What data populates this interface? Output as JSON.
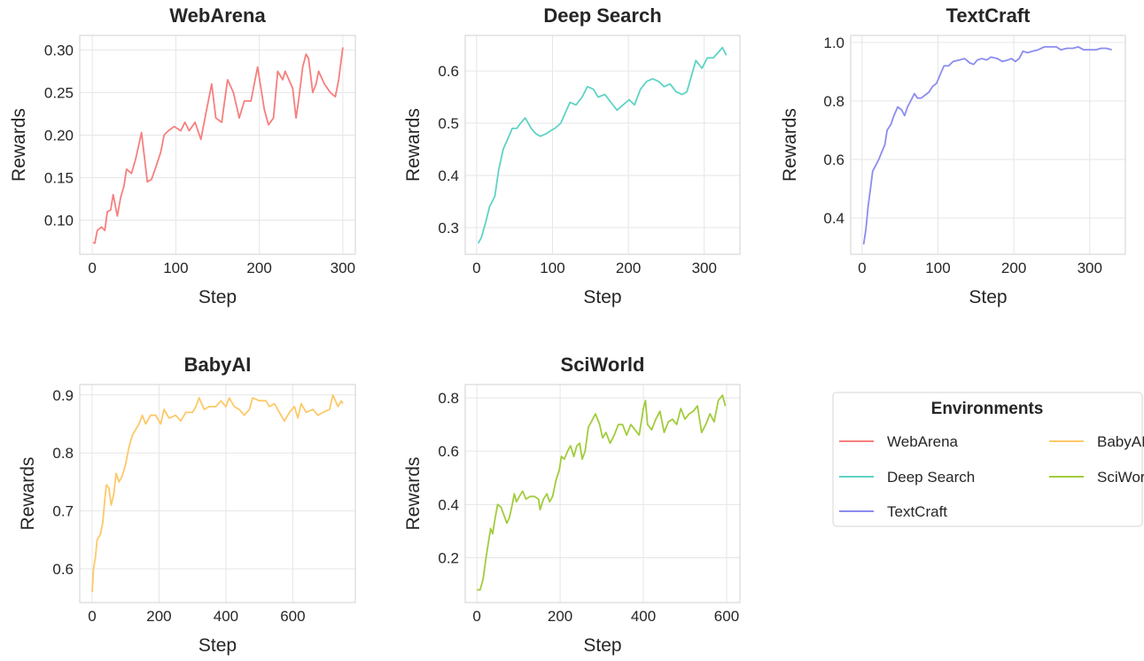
{
  "legend": {
    "title": "Environments",
    "placement": "bottom-right",
    "entries": [
      "WebArena",
      "BabyAI",
      "Deep Search",
      "SciWorld",
      "TextCraft"
    ]
  },
  "chart_data": [
    {
      "type": "line",
      "title": "WebArena",
      "xlabel": "Step",
      "ylabel": "Rewards",
      "color": "#f67f7f",
      "grid": true,
      "xlim": [
        -15,
        315
      ],
      "ylim": [
        0.06,
        0.317
      ],
      "xticks": [
        0,
        100,
        200,
        300
      ],
      "xtick_labels": [
        "0",
        "100",
        "200",
        "300"
      ],
      "yticks": [
        0.1,
        0.15,
        0.2,
        0.25,
        0.3
      ],
      "ytick_labels": [
        "0.10",
        "0.15",
        "0.20",
        "0.25",
        "0.30"
      ],
      "x": [
        1,
        3,
        6,
        11,
        15,
        18,
        22,
        25,
        30,
        34,
        38,
        41,
        47,
        52,
        59,
        66,
        71,
        77,
        82,
        86,
        91,
        98,
        106,
        111,
        116,
        123,
        130,
        137,
        143,
        148,
        155,
        162,
        169,
        176,
        182,
        190,
        198,
        206,
        211,
        217,
        222,
        228,
        231,
        240,
        244,
        247,
        252,
        256,
        259,
        264,
        268,
        271,
        278,
        285,
        291,
        295,
        300
      ],
      "y": [
        0.074,
        0.073,
        0.088,
        0.092,
        0.088,
        0.11,
        0.112,
        0.13,
        0.105,
        0.127,
        0.14,
        0.16,
        0.155,
        0.172,
        0.203,
        0.145,
        0.148,
        0.165,
        0.18,
        0.2,
        0.205,
        0.21,
        0.205,
        0.215,
        0.205,
        0.215,
        0.195,
        0.23,
        0.26,
        0.22,
        0.215,
        0.265,
        0.25,
        0.22,
        0.24,
        0.24,
        0.28,
        0.23,
        0.212,
        0.22,
        0.275,
        0.265,
        0.275,
        0.255,
        0.22,
        0.24,
        0.28,
        0.295,
        0.29,
        0.25,
        0.26,
        0.275,
        0.26,
        0.25,
        0.245,
        0.265,
        0.303
      ]
    },
    {
      "type": "line",
      "title": "Deep Search",
      "xlabel": "Step",
      "ylabel": "Rewards",
      "color": "#5fd3c5",
      "grid": true,
      "xlim": [
        -15,
        347
      ],
      "ylim": [
        0.249,
        0.668
      ],
      "xticks": [
        0,
        100,
        200,
        300
      ],
      "xtick_labels": [
        "0",
        "100",
        "200",
        "300"
      ],
      "yticks": [
        0.3,
        0.4,
        0.5,
        0.6
      ],
      "ytick_labels": [
        "0.3",
        "0.4",
        "0.5",
        "0.6"
      ],
      "x": [
        2,
        6,
        12,
        17,
        24,
        29,
        35,
        41,
        47,
        53,
        58,
        64,
        72,
        78,
        84,
        92,
        97,
        103,
        111,
        117,
        123,
        131,
        139,
        146,
        154,
        160,
        169,
        177,
        185,
        193,
        201,
        208,
        216,
        224,
        232,
        240,
        247,
        255,
        263,
        271,
        277,
        283,
        289,
        297,
        304,
        312,
        318,
        324,
        329
      ],
      "y": [
        0.27,
        0.28,
        0.31,
        0.34,
        0.36,
        0.41,
        0.45,
        0.47,
        0.49,
        0.49,
        0.5,
        0.51,
        0.49,
        0.48,
        0.475,
        0.48,
        0.485,
        0.49,
        0.5,
        0.52,
        0.54,
        0.535,
        0.55,
        0.57,
        0.565,
        0.55,
        0.555,
        0.54,
        0.525,
        0.535,
        0.545,
        0.535,
        0.565,
        0.58,
        0.585,
        0.58,
        0.57,
        0.575,
        0.56,
        0.555,
        0.56,
        0.59,
        0.62,
        0.605,
        0.625,
        0.625,
        0.635,
        0.645,
        0.63
      ]
    },
    {
      "type": "line",
      "title": "TextCraft",
      "xlabel": "Step",
      "ylabel": "Rewards",
      "color": "#8c8cf0",
      "grid": true,
      "xlim": [
        -15,
        347
      ],
      "ylim": [
        0.276,
        1.024
      ],
      "xticks": [
        0,
        100,
        200,
        300
      ],
      "xtick_labels": [
        "0",
        "100",
        "200",
        "300"
      ],
      "yticks": [
        0.4,
        0.6,
        0.8,
        1.0
      ],
      "ytick_labels": [
        "0.4",
        "0.6",
        "0.8",
        "1.0"
      ],
      "x": [
        2,
        5,
        8,
        11,
        14,
        18,
        22,
        25,
        30,
        33,
        38,
        42,
        47,
        52,
        56,
        60,
        64,
        69,
        73,
        78,
        83,
        88,
        93,
        98,
        103,
        108,
        114,
        120,
        128,
        135,
        142,
        147,
        152,
        158,
        164,
        170,
        178,
        185,
        192,
        197,
        202,
        207,
        212,
        218,
        225,
        232,
        240,
        248,
        256,
        262,
        270,
        278,
        285,
        292,
        300,
        308,
        315,
        322,
        329
      ],
      "y": [
        0.31,
        0.36,
        0.44,
        0.5,
        0.56,
        0.58,
        0.6,
        0.62,
        0.65,
        0.7,
        0.72,
        0.75,
        0.78,
        0.77,
        0.75,
        0.78,
        0.8,
        0.825,
        0.81,
        0.81,
        0.82,
        0.83,
        0.85,
        0.86,
        0.89,
        0.92,
        0.92,
        0.935,
        0.94,
        0.945,
        0.93,
        0.925,
        0.94,
        0.945,
        0.94,
        0.95,
        0.945,
        0.935,
        0.94,
        0.945,
        0.935,
        0.945,
        0.97,
        0.965,
        0.97,
        0.975,
        0.985,
        0.985,
        0.985,
        0.975,
        0.98,
        0.98,
        0.985,
        0.975,
        0.975,
        0.975,
        0.98,
        0.98,
        0.975
      ]
    },
    {
      "type": "line",
      "title": "BabyAI",
      "xlabel": "Step",
      "ylabel": "Rewards",
      "color": "#fcc96a",
      "grid": true,
      "xlim": [
        -37,
        787
      ],
      "ylim": [
        0.542,
        0.918
      ],
      "xticks": [
        0,
        200,
        400,
        600
      ],
      "xtick_labels": [
        "0",
        "200",
        "400",
        "600"
      ],
      "yticks": [
        0.6,
        0.7,
        0.8,
        0.9
      ],
      "ytick_labels": [
        "0.6",
        "0.7",
        "0.8",
        "0.9"
      ],
      "x": [
        0,
        4,
        10,
        15,
        25,
        32,
        38,
        43,
        50,
        57,
        65,
        72,
        80,
        90,
        100,
        110,
        120,
        130,
        140,
        150,
        160,
        175,
        190,
        205,
        215,
        230,
        250,
        265,
        280,
        300,
        310,
        320,
        335,
        350,
        370,
        385,
        400,
        410,
        425,
        440,
        455,
        470,
        480,
        500,
        520,
        530,
        545,
        560,
        575,
        590,
        605,
        615,
        625,
        640,
        660,
        675,
        690,
        710,
        720,
        735,
        745,
        750
      ],
      "y": [
        0.56,
        0.6,
        0.62,
        0.65,
        0.66,
        0.68,
        0.72,
        0.745,
        0.74,
        0.71,
        0.73,
        0.765,
        0.75,
        0.76,
        0.78,
        0.81,
        0.83,
        0.84,
        0.85,
        0.865,
        0.85,
        0.865,
        0.865,
        0.85,
        0.875,
        0.86,
        0.865,
        0.855,
        0.87,
        0.87,
        0.88,
        0.895,
        0.875,
        0.88,
        0.88,
        0.89,
        0.88,
        0.895,
        0.88,
        0.875,
        0.865,
        0.875,
        0.895,
        0.89,
        0.89,
        0.88,
        0.885,
        0.87,
        0.855,
        0.87,
        0.88,
        0.86,
        0.885,
        0.87,
        0.875,
        0.865,
        0.87,
        0.875,
        0.9,
        0.88,
        0.89,
        0.885
      ]
    },
    {
      "type": "line",
      "title": "SciWorld",
      "xlabel": "Step",
      "ylabel": "Rewards",
      "color": "#a2cc3c",
      "grid": true,
      "xlim": [
        -28,
        632
      ],
      "ylim": [
        0.032,
        0.85
      ],
      "xticks": [
        0,
        200,
        400,
        600
      ],
      "xtick_labels": [
        "0",
        "200",
        "400",
        "600"
      ],
      "yticks": [
        0.2,
        0.4,
        0.6,
        0.8
      ],
      "ytick_labels": [
        "0.2",
        "0.4",
        "0.6",
        "0.8"
      ],
      "x": [
        0,
        8,
        15,
        22,
        28,
        33,
        38,
        43,
        50,
        58,
        65,
        72,
        78,
        85,
        90,
        95,
        102,
        110,
        118,
        128,
        138,
        148,
        152,
        160,
        168,
        175,
        182,
        190,
        198,
        203,
        210,
        218,
        225,
        233,
        240,
        247,
        253,
        260,
        268,
        275,
        285,
        295,
        302,
        310,
        320,
        330,
        340,
        350,
        360,
        370,
        380,
        390,
        400,
        405,
        410,
        420,
        430,
        440,
        450,
        460,
        470,
        480,
        490,
        500,
        510,
        520,
        530,
        540,
        550,
        560,
        570,
        580,
        590,
        597
      ],
      "y": [
        0.08,
        0.08,
        0.12,
        0.2,
        0.26,
        0.31,
        0.29,
        0.34,
        0.4,
        0.39,
        0.36,
        0.33,
        0.35,
        0.4,
        0.44,
        0.41,
        0.43,
        0.45,
        0.42,
        0.43,
        0.43,
        0.42,
        0.38,
        0.42,
        0.44,
        0.41,
        0.43,
        0.49,
        0.53,
        0.58,
        0.57,
        0.6,
        0.62,
        0.58,
        0.62,
        0.63,
        0.57,
        0.6,
        0.69,
        0.71,
        0.74,
        0.7,
        0.65,
        0.67,
        0.63,
        0.66,
        0.7,
        0.7,
        0.66,
        0.7,
        0.68,
        0.66,
        0.76,
        0.79,
        0.7,
        0.68,
        0.72,
        0.75,
        0.67,
        0.71,
        0.72,
        0.7,
        0.76,
        0.72,
        0.74,
        0.75,
        0.77,
        0.67,
        0.7,
        0.74,
        0.71,
        0.79,
        0.81,
        0.77
      ]
    }
  ]
}
